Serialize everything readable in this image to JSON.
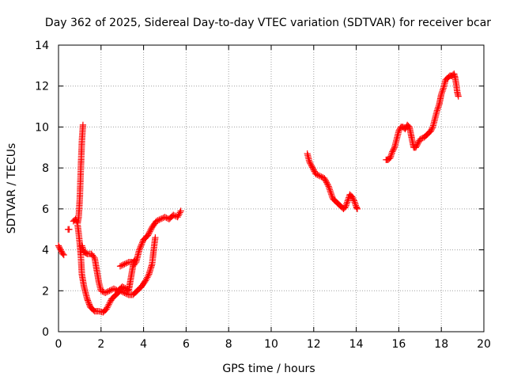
{
  "chart_data": {
    "type": "scatter",
    "title": "Day 362 of 2025, Sidereal Day-to-day VTEC variation (SDTVAR) for receiver bcar",
    "xlabel": "GPS time / hours",
    "ylabel": "SDTVAR / TECUs",
    "xlim": [
      0,
      20
    ],
    "ylim": [
      0,
      14
    ],
    "xticks": [
      0,
      2,
      4,
      6,
      8,
      10,
      12,
      14,
      16,
      18,
      20
    ],
    "yticks": [
      0,
      2,
      4,
      6,
      8,
      10,
      12,
      14
    ],
    "grid": true,
    "marker": "+",
    "color": "#ff0000",
    "series": [
      {
        "name": "SDTVAR",
        "segments": [
          [
            [
              0.0,
              4.2
            ],
            [
              0.1,
              4.0
            ],
            [
              0.2,
              3.8
            ],
            [
              0.25,
              3.75
            ]
          ],
          [
            [
              0.45,
              5.0
            ],
            [
              0.5,
              5.0
            ]
          ],
          [
            [
              0.7,
              5.4
            ],
            [
              0.8,
              5.5
            ],
            [
              0.9,
              5.3
            ],
            [
              0.95,
              5.6
            ],
            [
              1.0,
              6.5
            ],
            [
              1.05,
              8.0
            ],
            [
              1.1,
              9.3
            ],
            [
              1.15,
              10.1
            ]
          ],
          [
            [
              0.9,
              5.2
            ],
            [
              0.95,
              4.8
            ],
            [
              1.0,
              4.3
            ],
            [
              1.05,
              3.7
            ],
            [
              1.1,
              2.8
            ],
            [
              1.2,
              2.2
            ],
            [
              1.35,
              1.6
            ],
            [
              1.5,
              1.2
            ],
            [
              1.7,
              1.0
            ],
            [
              1.9,
              1.0
            ],
            [
              2.1,
              0.95
            ],
            [
              2.25,
              1.1
            ],
            [
              2.4,
              1.4
            ],
            [
              2.5,
              1.6
            ],
            [
              2.7,
              1.8
            ],
            [
              2.9,
              2.0
            ],
            [
              3.1,
              1.9
            ],
            [
              3.3,
              1.8
            ],
            [
              3.5,
              1.8
            ],
            [
              3.7,
              2.0
            ],
            [
              3.9,
              2.2
            ],
            [
              4.1,
              2.5
            ],
            [
              4.25,
              2.8
            ],
            [
              4.4,
              3.3
            ],
            [
              4.5,
              4.2
            ],
            [
              4.55,
              4.6
            ]
          ],
          [
            [
              1.1,
              4.2
            ],
            [
              1.2,
              3.9
            ],
            [
              1.35,
              3.8
            ],
            [
              1.55,
              3.8
            ],
            [
              1.7,
              3.6
            ],
            [
              1.8,
              3.0
            ],
            [
              1.9,
              2.4
            ],
            [
              2.0,
              2.0
            ],
            [
              2.2,
              1.9
            ],
            [
              2.4,
              2.0
            ],
            [
              2.6,
              2.1
            ],
            [
              2.8,
              2.0
            ],
            [
              3.0,
              2.2
            ],
            [
              3.2,
              2.1
            ],
            [
              3.3,
              2.0
            ],
            [
              3.4,
              2.6
            ],
            [
              3.5,
              3.2
            ],
            [
              3.65,
              3.4
            ],
            [
              3.8,
              4.0
            ],
            [
              4.0,
              4.5
            ],
            [
              4.2,
              4.7
            ],
            [
              4.4,
              5.1
            ],
            [
              4.6,
              5.4
            ],
            [
              4.8,
              5.5
            ],
            [
              5.0,
              5.6
            ],
            [
              5.2,
              5.5
            ],
            [
              5.4,
              5.7
            ],
            [
              5.6,
              5.6
            ],
            [
              5.75,
              5.9
            ]
          ],
          [
            [
              2.9,
              3.2
            ],
            [
              3.1,
              3.3
            ],
            [
              3.3,
              3.4
            ],
            [
              3.5,
              3.4
            ],
            [
              3.6,
              3.5
            ]
          ],
          [
            [
              11.7,
              8.7
            ],
            [
              11.8,
              8.3
            ],
            [
              11.9,
              8.1
            ],
            [
              12.0,
              7.9
            ],
            [
              12.1,
              7.7
            ],
            [
              12.3,
              7.6
            ],
            [
              12.5,
              7.5
            ],
            [
              12.6,
              7.3
            ],
            [
              12.7,
              7.1
            ],
            [
              12.8,
              6.8
            ],
            [
              12.9,
              6.5
            ],
            [
              13.0,
              6.4
            ],
            [
              13.1,
              6.3
            ],
            [
              13.2,
              6.2
            ],
            [
              13.3,
              6.1
            ],
            [
              13.4,
              6.0
            ],
            [
              13.5,
              6.1
            ],
            [
              13.6,
              6.4
            ],
            [
              13.7,
              6.7
            ],
            [
              13.8,
              6.6
            ],
            [
              13.9,
              6.4
            ],
            [
              14.0,
              6.1
            ],
            [
              14.05,
              6.0
            ]
          ],
          [
            [
              15.4,
              8.4
            ],
            [
              15.5,
              8.4
            ],
            [
              15.6,
              8.5
            ],
            [
              15.7,
              8.8
            ],
            [
              15.8,
              9.0
            ],
            [
              15.9,
              9.4
            ],
            [
              16.0,
              9.8
            ],
            [
              16.1,
              10.0
            ],
            [
              16.2,
              10.0
            ],
            [
              16.3,
              9.9
            ],
            [
              16.4,
              10.1
            ],
            [
              16.5,
              10.0
            ],
            [
              16.6,
              9.5
            ],
            [
              16.7,
              9.0
            ],
            [
              16.8,
              9.0
            ],
            [
              16.9,
              9.2
            ],
            [
              17.0,
              9.4
            ],
            [
              17.2,
              9.5
            ],
            [
              17.4,
              9.7
            ],
            [
              17.5,
              9.8
            ],
            [
              17.6,
              10.0
            ],
            [
              17.7,
              10.4
            ],
            [
              17.8,
              10.8
            ],
            [
              17.9,
              11.1
            ],
            [
              18.0,
              11.6
            ],
            [
              18.1,
              11.9
            ],
            [
              18.2,
              12.3
            ],
            [
              18.3,
              12.4
            ],
            [
              18.4,
              12.5
            ],
            [
              18.5,
              12.5
            ],
            [
              18.6,
              12.6
            ],
            [
              18.65,
              12.4
            ],
            [
              18.7,
              12.1
            ],
            [
              18.75,
              11.7
            ],
            [
              18.8,
              11.5
            ]
          ]
        ]
      }
    ]
  }
}
